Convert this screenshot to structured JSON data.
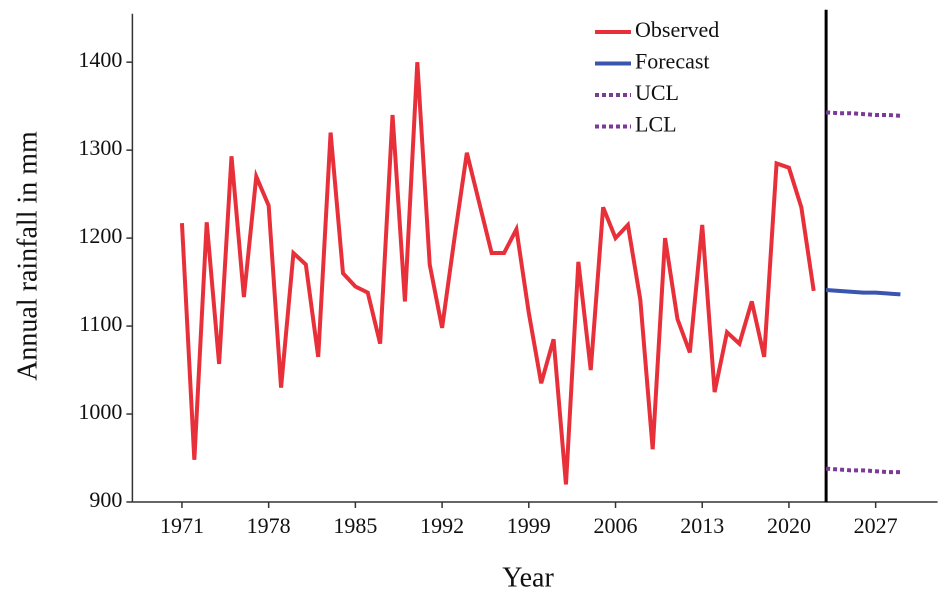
{
  "chart_data": {
    "type": "line",
    "xlabel": "Year",
    "ylabel": "Annual rainfall in mm",
    "xlim": [
      1967,
      2032
    ],
    "ylim": [
      900,
      1455
    ],
    "xticks": [
      1971,
      1978,
      1985,
      1992,
      1999,
      2006,
      2013,
      2020,
      2027
    ],
    "yticks": [
      900,
      1000,
      1100,
      1200,
      1300,
      1400
    ],
    "reference_line_x": 2023,
    "legend": "upper right",
    "series": [
      {
        "name": "Observed",
        "color": "#e8303a",
        "linestyle": "solid",
        "x": [
          1971,
          1972,
          1973,
          1974,
          1975,
          1976,
          1977,
          1978,
          1979,
          1980,
          1981,
          1982,
          1983,
          1984,
          1985,
          1986,
          1987,
          1988,
          1989,
          1990,
          1991,
          1992,
          1993,
          1994,
          1995,
          1996,
          1997,
          1998,
          1999,
          2000,
          2001,
          2002,
          2003,
          2004,
          2005,
          2006,
          2007,
          2008,
          2009,
          2010,
          2011,
          2012,
          2013,
          2014,
          2015,
          2016,
          2017,
          2018,
          2019,
          2020,
          2021,
          2022
        ],
        "values": [
          1217,
          948,
          1218,
          1057,
          1293,
          1133,
          1270,
          1237,
          1030,
          1183,
          1170,
          1065,
          1320,
          1160,
          1145,
          1138,
          1080,
          1340,
          1128,
          1400,
          1170,
          1098,
          1200,
          1297,
          1240,
          1183,
          1183,
          1210,
          1115,
          1035,
          1085,
          920,
          1173,
          1050,
          1235,
          1200,
          1215,
          1130,
          960,
          1200,
          1108,
          1070,
          1215,
          1025,
          1093,
          1080,
          1128,
          1065,
          1285,
          1280,
          1235,
          1140
        ]
      },
      {
        "name": "Forecast",
        "color": "#3a55b0",
        "linestyle": "solid",
        "x": [
          2023,
          2024,
          2025,
          2026,
          2027,
          2028,
          2029
        ],
        "values": [
          1141,
          1140,
          1139,
          1138,
          1138,
          1137,
          1136
        ]
      },
      {
        "name": "UCL",
        "color": "#7b3a96",
        "linestyle": "dotted",
        "x": [
          2023,
          2024,
          2025,
          2026,
          2027,
          2028,
          2029
        ],
        "values": [
          1343,
          1342,
          1342,
          1341,
          1340,
          1340,
          1339
        ]
      },
      {
        "name": "LCL",
        "color": "#7b3a96",
        "linestyle": "dotted",
        "x": [
          2023,
          2024,
          2025,
          2026,
          2027,
          2028,
          2029
        ],
        "values": [
          938,
          937,
          936,
          936,
          935,
          934,
          934
        ]
      }
    ]
  }
}
